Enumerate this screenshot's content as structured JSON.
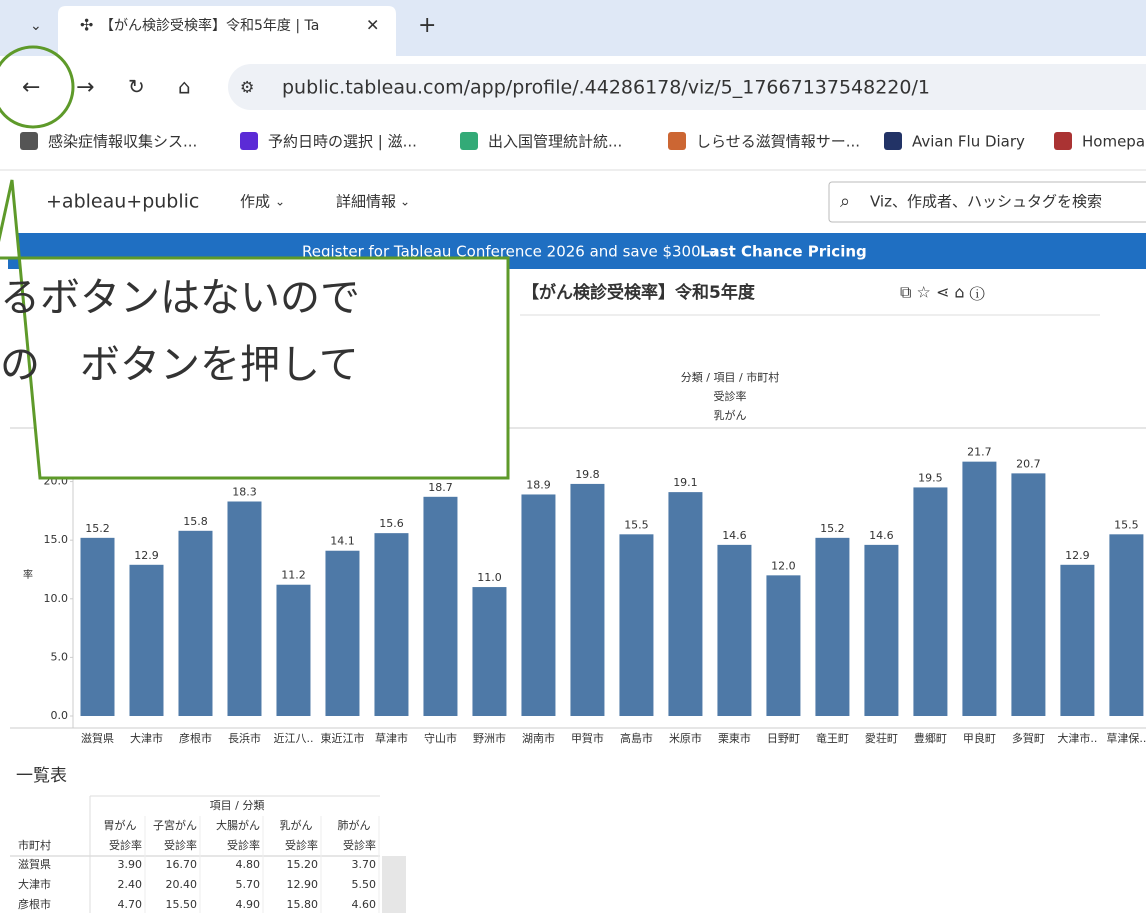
{
  "browser": {
    "tab_title": "【がん検診受検率】令和5年度 | Ta",
    "address": "public.tableau.com/app/profile/.44286178/viz/5_17667137548220/1",
    "bookmarks": [
      "感染症情報収集シス...",
      "予約日時の選択 | 滋...",
      "出入国管理統計統...",
      "しらせる滋賀情報サー...",
      "Avian Flu Diary",
      "Homepa"
    ]
  },
  "site": {
    "logo": "+ableau+public",
    "menu": [
      "作成",
      "詳細情報"
    ],
    "search_placeholder": "Viz、作成者、ハッシュタグを検索",
    "banner_text": "Register for Tableau Conference 2026 and save $300 →",
    "banner_link": "Last Chance Pricing"
  },
  "viz_title": "【がん検診受検率】令和5年度",
  "callout": {
    "lines": [
      "るボタンはないので",
      "の　ボタンを押して"
    ]
  },
  "chart_data": {
    "type": "bar",
    "header": [
      "分類 / 項目 / 市町村",
      "受診率",
      "乳がん"
    ],
    "y_label": "率",
    "categories": [
      "滋賀県",
      "大津市",
      "彦根市",
      "長浜市",
      "近江八..",
      "東近江市",
      "草津市",
      "守山市",
      "野洲市",
      "湖南市",
      "甲賀市",
      "高島市",
      "米原市",
      "栗東市",
      "日野町",
      "竜王町",
      "愛荘町",
      "豊郷町",
      "甲良町",
      "多賀町",
      "大津市..",
      "草津保.."
    ],
    "values": [
      15.2,
      12.9,
      15.8,
      18.3,
      11.2,
      14.1,
      15.6,
      18.7,
      11.0,
      18.9,
      19.8,
      15.5,
      19.1,
      14.6,
      12.0,
      15.2,
      14.6,
      19.5,
      21.7,
      20.7,
      12.9,
      15.5
    ],
    "value_labels": [
      "15.2",
      "12.9",
      "15.8",
      "18.3",
      "11.2",
      "14.1",
      "15.6",
      "18.7",
      "11.0",
      "18.9",
      "19.8",
      "15.5",
      "19.1",
      "14.6",
      "12.0",
      "15.2",
      "14.6",
      "19.5",
      "21.7",
      "20.7",
      "12.9",
      "15.5"
    ],
    "color": "#4e79a7",
    "ylim": [
      0,
      24.4
    ],
    "yticks": [
      {
        "value": 0,
        "label": "0.0"
      },
      {
        "value": 5,
        "label": "5.0"
      },
      {
        "value": 10,
        "label": "10.0"
      },
      {
        "value": 15,
        "label": "15.0"
      },
      {
        "value": 20,
        "label": "20.0"
      }
    ]
  },
  "table": {
    "title": "一覧表",
    "group_header": "項目 / 分類",
    "row_header": "市町村",
    "columns": [
      "胃がん",
      "子宮がん",
      "大腸がん",
      "乳がん",
      "肺がん"
    ],
    "measures": [
      "受診率",
      "受診率",
      "受診率",
      "受診率",
      "受診率"
    ],
    "rows": [
      [
        "滋賀県",
        "3.90",
        "16.70",
        "4.80",
        "15.20",
        "3.70"
      ],
      [
        "大津市",
        "2.40",
        "20.40",
        "5.70",
        "12.90",
        "5.50"
      ],
      [
        "彦根市",
        "4.70",
        "15.50",
        "4.90",
        "15.80",
        "4.60"
      ]
    ]
  }
}
